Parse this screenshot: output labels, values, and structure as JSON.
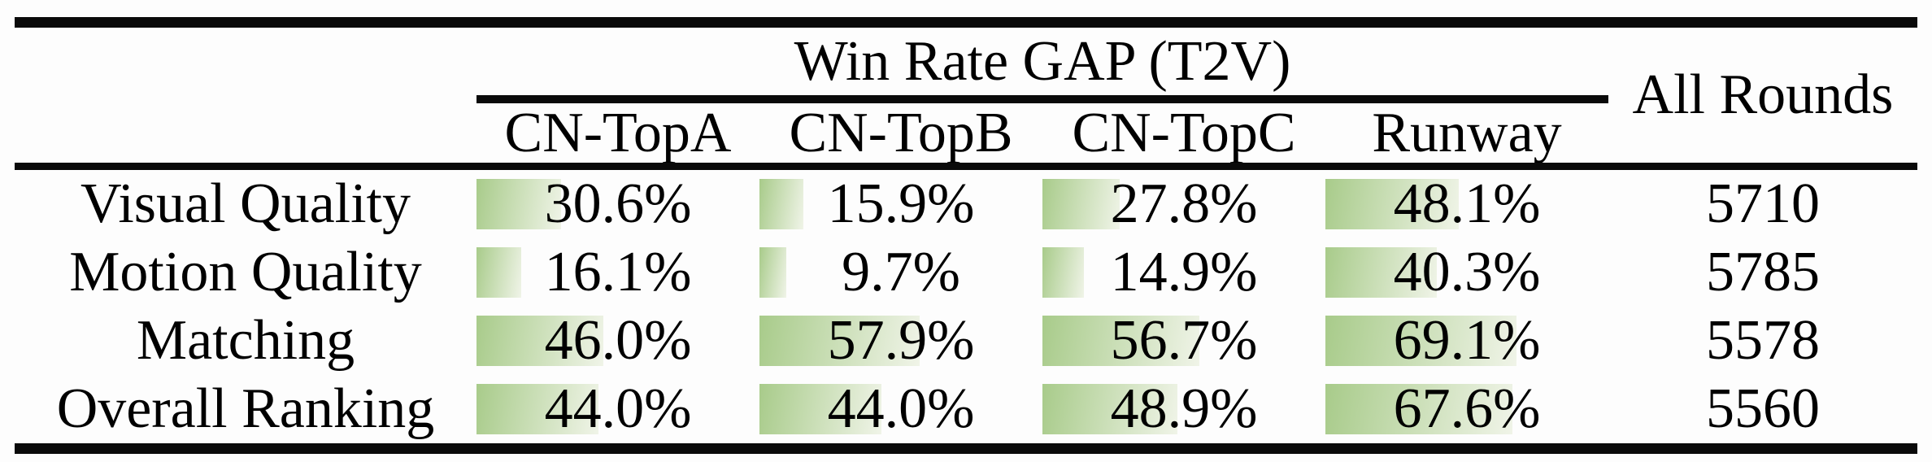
{
  "table": {
    "group_header": "Win Rate GAP (T2V)",
    "all_rounds_header": "All Rounds",
    "columns": [
      "CN-TopA",
      "CN-TopB",
      "CN-TopC",
      "Runway"
    ],
    "rows": [
      {
        "label": "Visual Quality",
        "cells": [
          {
            "text": "30.6%",
            "value": 30.6
          },
          {
            "text": "15.9%",
            "value": 15.9
          },
          {
            "text": "27.8%",
            "value": 27.8
          },
          {
            "text": "48.1%",
            "value": 48.1
          }
        ],
        "all_rounds": "5710"
      },
      {
        "label": "Motion Quality",
        "cells": [
          {
            "text": "16.1%",
            "value": 16.1
          },
          {
            "text": "9.7%",
            "value": 9.7
          },
          {
            "text": "14.9%",
            "value": 14.9
          },
          {
            "text": "40.3%",
            "value": 40.3
          }
        ],
        "all_rounds": "5785"
      },
      {
        "label": "Matching",
        "cells": [
          {
            "text": "46.0%",
            "value": 46.0
          },
          {
            "text": "57.9%",
            "value": 57.9
          },
          {
            "text": "56.7%",
            "value": 56.7
          },
          {
            "text": "69.1%",
            "value": 69.1
          }
        ],
        "all_rounds": "5578"
      },
      {
        "label": "Overall Ranking",
        "cells": [
          {
            "text": "44.0%",
            "value": 44.0
          },
          {
            "text": "44.0%",
            "value": 44.0
          },
          {
            "text": "48.9%",
            "value": 48.9
          },
          {
            "text": "67.6%",
            "value": 67.6
          }
        ],
        "all_rounds": "5560"
      }
    ],
    "bar_gradient_start": "#a8cb8a",
    "bar_gradient_end": "#f0f4e8",
    "rule_color": "#0a0a0a"
  }
}
